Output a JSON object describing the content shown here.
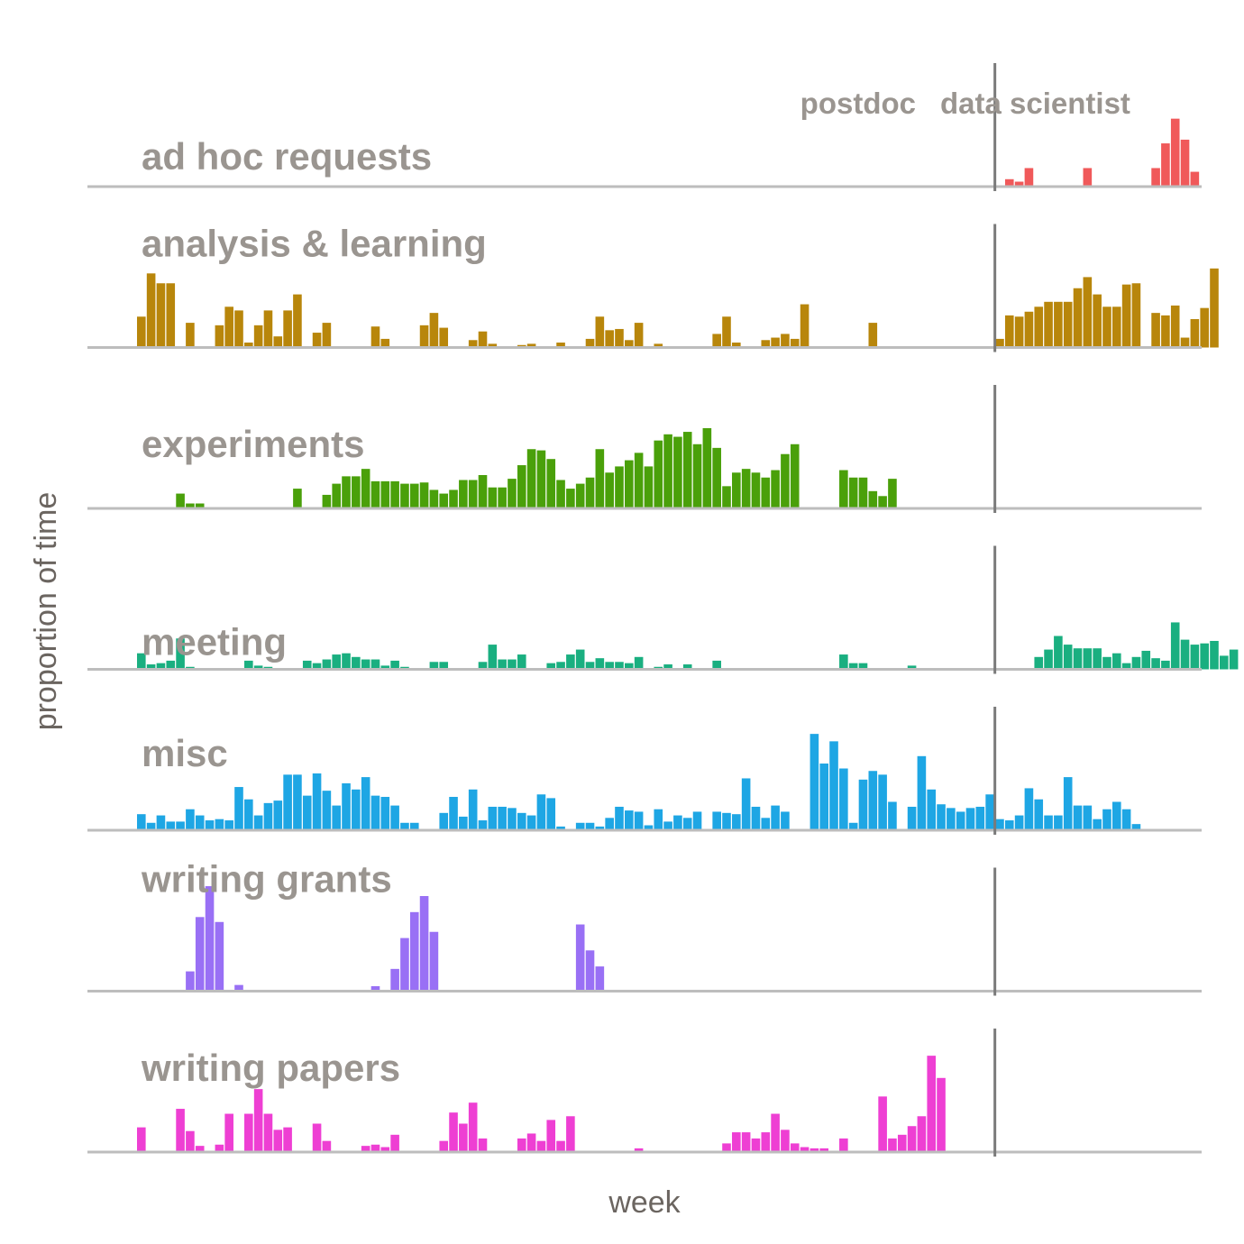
{
  "chart_data": {
    "type": "bar",
    "title": "",
    "xlabel": "week",
    "ylabel": "proportion of time",
    "periods": [
      "postdoc",
      "data scientist"
    ],
    "switch_after_week": 88,
    "weeks": 112,
    "ylim": [
      0,
      1
    ],
    "series": [
      {
        "name": "ad hoc requests",
        "color": "#f0595a",
        "start_week": 89,
        "values": [
          0.01,
          0.06,
          0.04,
          0.15,
          0,
          0,
          0,
          0,
          0,
          0.15,
          0,
          0,
          0,
          0,
          0,
          0,
          0.15,
          0.35,
          0.55,
          0.38,
          0.12
        ]
      },
      {
        "name": "analysis & learning",
        "color": "#b8860b",
        "start_week": 1,
        "values": [
          0.25,
          0.6,
          0.52,
          0.52,
          0,
          0.2,
          0.005,
          0.01,
          0.18,
          0.33,
          0.3,
          0.04,
          0.18,
          0.3,
          0.09,
          0.3,
          0.43,
          0,
          0.12,
          0.2,
          0,
          0,
          0,
          0.005,
          0.17,
          0.07,
          0.01,
          0.005,
          0,
          0.18,
          0.28,
          0.16,
          0,
          0,
          0.06,
          0.13,
          0.03,
          0,
          0,
          0.02,
          0.03,
          0,
          0,
          0.04,
          0,
          0,
          0.07,
          0.25,
          0.14,
          0.15,
          0.06,
          0.2,
          0,
          0.03,
          0,
          0,
          0,
          0,
          0,
          0.11,
          0.25,
          0.04,
          0,
          0,
          0.06,
          0.08,
          0.11,
          0.07,
          0.35,
          0,
          0,
          0,
          0,
          0,
          0,
          0.2,
          0,
          0,
          0,
          0,
          0,
          0,
          0,
          0,
          0,
          0,
          0,
          0,
          0.07,
          0.26,
          0.25,
          0.29,
          0.33,
          0.37,
          0.37,
          0.37,
          0.48,
          0.57,
          0.43,
          0.33,
          0.33,
          0.51,
          0.52,
          0,
          0.28,
          0.26,
          0.34,
          0.08,
          0.23,
          0.32,
          0.64
        ]
      },
      {
        "name": "experiments",
        "color": "#4aa00a",
        "start_week": 1,
        "values": [
          0,
          0,
          0,
          0,
          0.12,
          0.04,
          0.04,
          0,
          0,
          0,
          0.01,
          0,
          0,
          0,
          0,
          0,
          0.16,
          0,
          0,
          0.11,
          0.2,
          0.26,
          0.26,
          0.32,
          0.22,
          0.22,
          0.22,
          0.2,
          0.2,
          0.21,
          0.15,
          0.12,
          0.15,
          0.23,
          0.23,
          0.27,
          0.17,
          0.17,
          0.24,
          0.35,
          0.48,
          0.47,
          0.4,
          0.23,
          0.16,
          0.2,
          0.25,
          0.48,
          0.29,
          0.34,
          0.39,
          0.45,
          0.34,
          0.55,
          0.6,
          0.58,
          0.62,
          0.52,
          0.65,
          0.49,
          0.18,
          0.29,
          0.32,
          0.29,
          0.25,
          0.31,
          0.44,
          0.52,
          0,
          0,
          0,
          0,
          0.31,
          0.25,
          0.25,
          0.14,
          0.1,
          0.24,
          0,
          0,
          0,
          0,
          0,
          0,
          0,
          0,
          0,
          0,
          0,
          0,
          0,
          0,
          0,
          0,
          0,
          0,
          0,
          0,
          0,
          0,
          0,
          0,
          0,
          0,
          0,
          0,
          0,
          0,
          0,
          0,
          0,
          0
        ]
      },
      {
        "name": "meeting",
        "color": "#1aaf80",
        "start_week": 1,
        "values": [
          0.13,
          0.04,
          0.05,
          0.07,
          0.25,
          0.02,
          0.01,
          0,
          0,
          0,
          0.01,
          0.07,
          0.03,
          0.02,
          0,
          0,
          0,
          0.07,
          0.05,
          0.08,
          0.12,
          0.13,
          0.1,
          0.08,
          0.08,
          0.03,
          0.07,
          0.02,
          0.01,
          0,
          0.06,
          0.06,
          0,
          0,
          0.01,
          0.06,
          0.2,
          0.08,
          0.08,
          0.12,
          0,
          0,
          0.05,
          0.06,
          0.12,
          0.16,
          0.06,
          0.09,
          0.06,
          0.06,
          0.05,
          0.1,
          0,
          0.02,
          0.04,
          0,
          0.04,
          0,
          0,
          0.07,
          0,
          0,
          0,
          0,
          0,
          0,
          0,
          0,
          0,
          0,
          0,
          0,
          0.12,
          0.05,
          0.05,
          0,
          0,
          0,
          0,
          0.03,
          0,
          0,
          0,
          0,
          0,
          0,
          0,
          0,
          0,
          0,
          0,
          0,
          0.1,
          0.16,
          0.27,
          0.2,
          0.17,
          0.17,
          0.17,
          0.1,
          0.13,
          0.05,
          0.1,
          0.15,
          0.09,
          0.07,
          0.38,
          0.24,
          0.2,
          0.21,
          0.23,
          0.11,
          0.16,
          0,
          0,
          0,
          0,
          0,
          0,
          0,
          0,
          0
        ]
      },
      {
        "name": "misc",
        "color": "#1ea6e4",
        "start_week": 1,
        "values": [
          0.13,
          0.06,
          0.12,
          0.07,
          0.07,
          0.17,
          0.12,
          0.08,
          0.09,
          0.08,
          0.35,
          0.25,
          0.12,
          0.22,
          0.24,
          0.45,
          0.45,
          0.28,
          0.46,
          0.32,
          0.2,
          0.38,
          0.33,
          0.43,
          0.28,
          0.27,
          0.2,
          0.06,
          0.06,
          0.01,
          0.01,
          0.14,
          0.27,
          0.11,
          0.33,
          0.08,
          0.19,
          0.19,
          0.18,
          0.14,
          0.12,
          0.29,
          0.26,
          0.03,
          0,
          0.06,
          0.06,
          0.03,
          0.1,
          0.19,
          0.16,
          0.15,
          0.04,
          0.17,
          0.07,
          0.12,
          0.1,
          0.15,
          0,
          0.15,
          0.14,
          0.13,
          0.42,
          0.19,
          0.1,
          0.2,
          0.15,
          0.01,
          0,
          0.78,
          0.54,
          0.72,
          0.5,
          0.06,
          0.41,
          0.48,
          0.45,
          0.23,
          0,
          0.19,
          0.6,
          0.33,
          0.21,
          0.18,
          0.15,
          0.18,
          0.19,
          0.29,
          0.09,
          0.08,
          0.12,
          0.34,
          0.25,
          0.12,
          0.12,
          0.43,
          0.2,
          0.2,
          0.09,
          0.17,
          0.23,
          0.17,
          0.05
        ]
      },
      {
        "name": "writing grants",
        "color": "#9970f5",
        "start_week": 1,
        "values": [
          0,
          0,
          0,
          0,
          0,
          0.16,
          0.6,
          0.85,
          0.56,
          0,
          0.05,
          0,
          0,
          0,
          0,
          0,
          0,
          0,
          0,
          0,
          0,
          0,
          0,
          0,
          0.04,
          0,
          0.18,
          0.43,
          0.64,
          0.77,
          0.48,
          0,
          0,
          0,
          0,
          0,
          0,
          0,
          0,
          0,
          0,
          0,
          0,
          0,
          0.01,
          0.54,
          0.33,
          0.2
        ]
      },
      {
        "name": "writing papers",
        "color": "#ee3fd3",
        "start_week": 1,
        "values": [
          0.2,
          0,
          0,
          0,
          0.35,
          0.17,
          0.05,
          0,
          0.06,
          0.31,
          0,
          0.31,
          0.51,
          0.31,
          0.18,
          0.2,
          0,
          0,
          0.23,
          0.09,
          0,
          0,
          0,
          0.05,
          0.06,
          0.04,
          0.14,
          0,
          0.01,
          0,
          0,
          0.09,
          0.32,
          0.23,
          0.4,
          0.11,
          0,
          0.01,
          0,
          0.11,
          0.15,
          0.09,
          0.26,
          0.09,
          0.29,
          0,
          0,
          0,
          0,
          0,
          0,
          0.03,
          0,
          0,
          0,
          0,
          0,
          0,
          0,
          0,
          0.07,
          0.16,
          0.16,
          0.11,
          0.16,
          0.31,
          0.18,
          0.07,
          0.04,
          0.03,
          0.03,
          0,
          0.11,
          0,
          0,
          0,
          0.45,
          0.11,
          0.14,
          0.21,
          0.29,
          0.78,
          0.6
        ]
      }
    ]
  }
}
